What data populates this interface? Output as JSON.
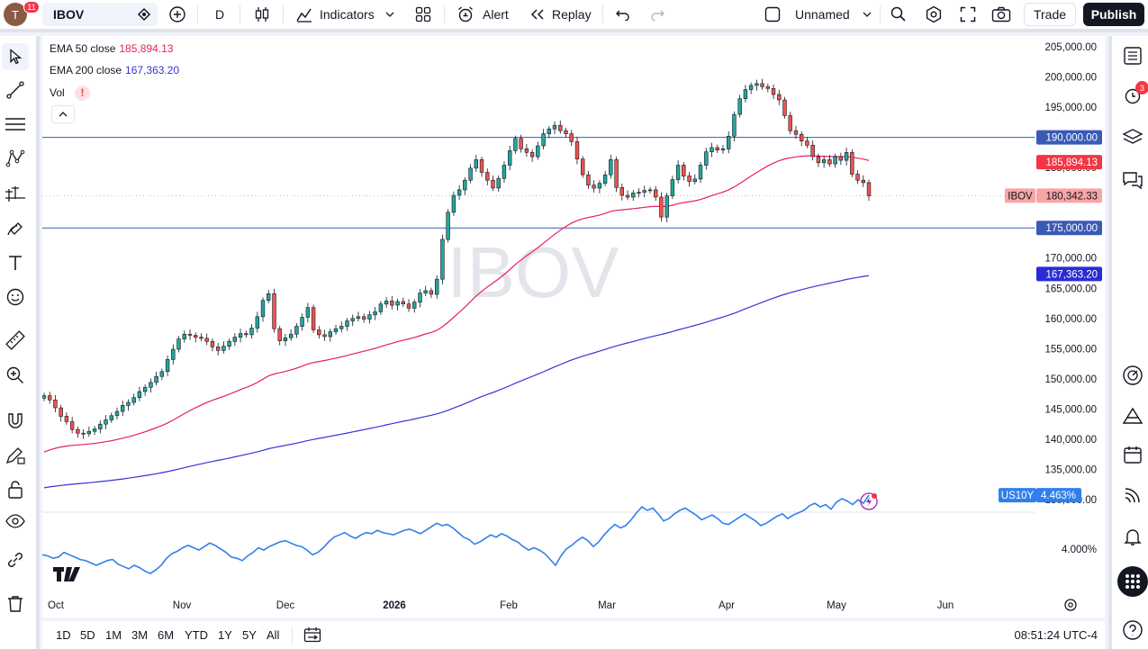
{
  "topbar": {
    "avatar_letter": "T",
    "notifications": "11",
    "symbol": "IBOV",
    "interval": "D",
    "indicators_label": "Indicators",
    "alert_label": "Alert",
    "replay_label": "Replay",
    "layout_name": "Unnamed",
    "trade_label": "Trade",
    "publish_label": "Publish"
  },
  "legend": {
    "ema50_label": "EMA 50 close",
    "ema50_value": "185,894.13",
    "ema200_label": "EMA 200 close",
    "ema200_value": "167,363.20",
    "vol_label": "Vol",
    "vol_warning": "!"
  },
  "colors": {
    "up": "#26a69a",
    "down": "#ef5350",
    "ema50": "#e91e63",
    "ema200": "#3535d6",
    "us10y": "#2f80ed",
    "hline": "#3a5ab8"
  },
  "right_sidebar": {
    "alerts_badge": "3"
  },
  "chart_data": [
    {
      "type": "candlestick",
      "symbol": "IBOV",
      "watermark": "IBOV",
      "y_ticks": [
        "205,000.00",
        "200,000.00",
        "195,000.00",
        "190,000.00",
        "185,000.00",
        "180,000.00",
        "175,000.00",
        "170,000.00",
        "165,000.00",
        "160,000.00",
        "155,000.00",
        "150,000.00",
        "145,000.00",
        "140,000.00",
        "135,000.00",
        "130,000.00"
      ],
      "ylim": [
        128000,
        206500
      ],
      "x_ticks": [
        "Oct",
        "Nov",
        "Dec",
        "2026",
        "Feb",
        "Mar",
        "Apr",
        "May",
        "Jun"
      ],
      "closes": [
        147200,
        146500,
        145200,
        143800,
        142900,
        141600,
        141000,
        140900,
        141300,
        141700,
        142500,
        143200,
        143900,
        144600,
        145600,
        146100,
        146900,
        147900,
        148600,
        149400,
        150400,
        151200,
        153200,
        154900,
        156600,
        157400,
        157200,
        156900,
        156700,
        156200,
        155300,
        154700,
        155400,
        156200,
        156900,
        157500,
        157300,
        158400,
        160300,
        163000,
        164100,
        158300,
        156300,
        156800,
        157400,
        158700,
        160200,
        161800,
        158100,
        157300,
        157000,
        157800,
        158300,
        158700,
        159600,
        160000,
        160300,
        159900,
        160600,
        161100,
        162400,
        162900,
        162200,
        162800,
        162400,
        161700,
        162700,
        164200,
        164600,
        164000,
        166500,
        173100,
        177600,
        180400,
        181300,
        182900,
        184900,
        186300,
        184200,
        182900,
        181600,
        183200,
        185400,
        187800,
        189800,
        188100,
        187500,
        186800,
        188600,
        190600,
        191400,
        192000,
        191100,
        190600,
        189300,
        186400,
        183800,
        182100,
        181600,
        182400,
        183800,
        186300,
        181700,
        180400,
        180100,
        180800,
        180900,
        181200,
        181300,
        180100,
        176800,
        180300,
        183000,
        185400,
        183600,
        182700,
        183100,
        185400,
        187600,
        188300,
        187900,
        188100,
        190200,
        193800,
        196400,
        197900,
        198600,
        198900,
        198400,
        198100,
        197100,
        196200,
        193600,
        191100,
        190500,
        189400,
        188700,
        186800,
        185800,
        186300,
        185600,
        186800,
        186200,
        187500,
        183900,
        182900,
        182500,
        180342
      ],
      "us10y_label": "US10Y",
      "us10y_value": "4.463%",
      "us10y_tick": "4.000%",
      "us10y_series": [
        3.95,
        3.94,
        3.92,
        3.93,
        3.97,
        3.95,
        3.93,
        3.91,
        3.9,
        3.88,
        3.86,
        3.88,
        3.9,
        3.91,
        3.87,
        3.85,
        3.83,
        3.86,
        3.84,
        3.81,
        3.79,
        3.82,
        3.86,
        3.92,
        3.96,
        3.98,
        4.01,
        4.03,
        4.01,
        3.99,
        4.02,
        4.05,
        4.03,
        4.0,
        3.97,
        3.93,
        3.92,
        3.9,
        3.94,
        3.97,
        4.01,
        3.99,
        4.02,
        4.04,
        4.06,
        4.07,
        4.05,
        4.03,
        4.02,
        3.99,
        3.95,
        3.97,
        4.01,
        4.06,
        4.1,
        4.12,
        4.14,
        4.11,
        4.09,
        4.12,
        4.14,
        4.13,
        4.16,
        4.14,
        4.13,
        4.12,
        4.14,
        4.16,
        4.17,
        4.15,
        4.13,
        4.16,
        4.19,
        4.22,
        4.2,
        4.21,
        4.18,
        4.14,
        4.1,
        4.08,
        4.04,
        4.06,
        4.09,
        4.12,
        4.1,
        4.13,
        4.11,
        4.08,
        4.06,
        4.02,
        3.99,
        4.01,
        3.99,
        3.96,
        3.91,
        3.86,
        3.94,
        4.0,
        4.03,
        4.07,
        4.1,
        4.07,
        4.02,
        4.06,
        4.12,
        4.17,
        4.21,
        4.18,
        4.2,
        4.25,
        4.31,
        4.36,
        4.33,
        4.35,
        4.3,
        4.24,
        4.26,
        4.3,
        4.33,
        4.35,
        4.32,
        4.29,
        4.25,
        4.27,
        4.29,
        4.26,
        4.22,
        4.21,
        4.24,
        4.27,
        4.3,
        4.27,
        4.24,
        4.2,
        4.22,
        4.25,
        4.28,
        4.3,
        4.26,
        4.29,
        4.31,
        4.33,
        4.37,
        4.39,
        4.36,
        4.38,
        4.34,
        4.4,
        4.43,
        4.41,
        4.38,
        4.42,
        4.39,
        4.46
      ],
      "ema50_end": 185894.13,
      "ema200_end": 167363.2,
      "horizontal_lines": [
        190000,
        175000
      ],
      "price_labels": [
        {
          "text": "190,000.00",
          "value": 190000,
          "bg": "#3a5ab8"
        },
        {
          "text": "185,894.13",
          "value": 185894.13,
          "bg": "#f23645"
        },
        {
          "text": "180,342.33",
          "value": 180342.33,
          "bg": "#f7a5a5",
          "symbol": "IBOV"
        },
        {
          "text": "175,000.00",
          "value": 175000,
          "bg": "#3a5ab8"
        },
        {
          "text": "167,363.20",
          "value": 167363.2,
          "bg": "#2b2bd6"
        }
      ]
    }
  ],
  "bottombar": {
    "ranges": [
      "1D",
      "5D",
      "1M",
      "3M",
      "6M",
      "YTD",
      "1Y",
      "5Y",
      "All"
    ],
    "clock": "08:51:24 UTC-4"
  }
}
